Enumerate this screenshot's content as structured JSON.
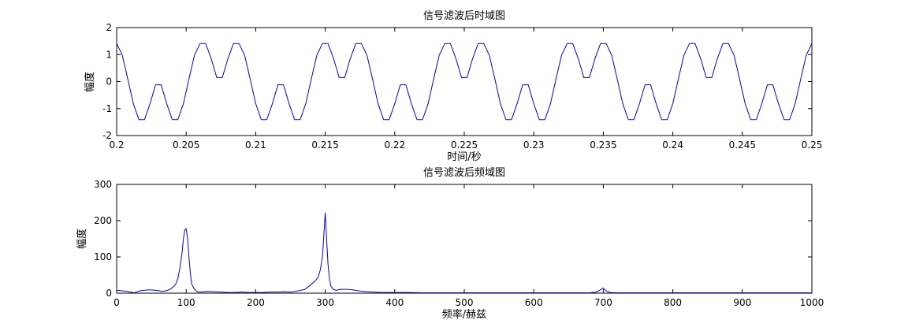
{
  "colors": {
    "axes": "#000000",
    "line": "#0000cc",
    "background": "#ffffff"
  },
  "chart_data": [
    {
      "type": "line",
      "title": "信号滤波后时域图",
      "xlabel": "时间/秒",
      "ylabel": "幅度",
      "xlim": [
        0.2,
        0.25
      ],
      "ylim": [
        -2,
        2
      ],
      "xticks": [
        0.2,
        0.205,
        0.21,
        0.215,
        0.22,
        0.225,
        0.23,
        0.235,
        0.24,
        0.245,
        0.25
      ],
      "xtick_labels": [
        "0.2",
        "0.205",
        "0.21",
        "0.215",
        "0.22",
        "0.225",
        "0.23",
        "0.235",
        "0.24",
        "0.245",
        "0.25"
      ],
      "yticks": [
        -2,
        -1,
        0,
        1,
        2
      ],
      "ytick_labels": [
        "-2",
        "-1",
        "0",
        "1",
        "2"
      ],
      "grid": false,
      "series": [
        {
          "x": [
            0.2,
            0.2004,
            0.2008,
            0.2012,
            0.2016,
            0.202,
            0.2024,
            0.2028,
            0.2032,
            0.2036,
            0.204,
            0.2044,
            0.2048,
            0.2052,
            0.2056,
            0.206,
            0.2064,
            0.2068,
            0.2072,
            0.2076,
            0.208,
            0.2084,
            0.2088,
            0.2092,
            0.2096,
            0.21,
            0.2104,
            0.2108,
            0.2112,
            0.2116,
            0.212,
            0.2124,
            0.2128,
            0.2132,
            0.2136,
            0.214,
            0.2144,
            0.2148,
            0.2152,
            0.2156,
            0.216,
            0.2164,
            0.2168,
            0.2172,
            0.2176,
            0.218,
            0.2184,
            0.2188,
            0.2192,
            0.2196,
            0.22,
            0.2204,
            0.2208,
            0.2212,
            0.2216,
            0.222,
            0.2224,
            0.2228,
            0.2232,
            0.2236,
            0.224,
            0.2244,
            0.2248,
            0.2252,
            0.2256,
            0.226,
            0.2264,
            0.2268,
            0.2272,
            0.2276,
            0.228,
            0.2284,
            0.2288,
            0.2292,
            0.2296,
            0.23,
            0.2304,
            0.2308,
            0.2312,
            0.2316,
            0.232,
            0.2324,
            0.2328,
            0.2332,
            0.2336,
            0.234,
            0.2344,
            0.2348,
            0.2352,
            0.2356,
            0.236,
            0.2364,
            0.2368,
            0.2372,
            0.2376,
            0.238,
            0.2384,
            0.2388,
            0.2392,
            0.2396,
            0.24,
            0.2404,
            0.2408,
            0.2412,
            0.2416,
            0.242,
            0.2424,
            0.2428,
            0.2432,
            0.2436,
            0.244,
            0.2444,
            0.2448,
            0.2452,
            0.2456,
            0.246,
            0.2464,
            0.2468,
            0.2472,
            0.2476,
            0.248,
            0.2484,
            0.2488,
            0.2492,
            0.2496,
            0.25
          ],
          "y": [
            1.41,
            0.98,
            0.1,
            -0.82,
            -1.41,
            -1.41,
            -0.82,
            -0.12,
            -0.12,
            -0.82,
            -1.41,
            -1.41,
            -0.82,
            0.1,
            0.98,
            1.41,
            1.41,
            0.85,
            0.15,
            0.15,
            0.85,
            1.41,
            1.41,
            0.98,
            0.1,
            -0.82,
            -1.41,
            -1.41,
            -0.82,
            -0.12,
            -0.12,
            -0.82,
            -1.41,
            -1.41,
            -0.82,
            0.1,
            0.98,
            1.41,
            1.41,
            0.85,
            0.15,
            0.15,
            0.85,
            1.41,
            1.41,
            0.98,
            0.1,
            -0.82,
            -1.41,
            -1.41,
            -0.82,
            -0.12,
            -0.12,
            -0.82,
            -1.41,
            -1.41,
            -0.82,
            0.1,
            0.98,
            1.41,
            1.41,
            0.85,
            0.15,
            0.15,
            0.85,
            1.41,
            1.41,
            0.98,
            0.1,
            -0.82,
            -1.41,
            -1.41,
            -0.82,
            -0.12,
            -0.12,
            -0.82,
            -1.41,
            -1.41,
            -0.82,
            0.1,
            0.98,
            1.41,
            1.41,
            0.85,
            0.15,
            0.15,
            0.85,
            1.41,
            1.41,
            0.98,
            0.1,
            -0.82,
            -1.41,
            -1.41,
            -0.82,
            -0.12,
            -0.12,
            -0.82,
            -1.41,
            -1.41,
            -0.82,
            0.1,
            0.98,
            1.41,
            1.41,
            0.85,
            0.15,
            0.15,
            0.85,
            1.41,
            1.41,
            0.98,
            0.1,
            -0.82,
            -1.41,
            -1.41,
            -0.82,
            -0.12,
            -0.12,
            -0.82,
            -1.41,
            -1.41,
            -0.82,
            0.1,
            0.98,
            1.41
          ]
        }
      ]
    },
    {
      "type": "line",
      "title": "信号滤波后频域图",
      "xlabel": "频率/赫兹",
      "ylabel": "幅度",
      "xlim": [
        0,
        1000
      ],
      "ylim": [
        0,
        300
      ],
      "xticks": [
        0,
        100,
        200,
        300,
        400,
        500,
        600,
        700,
        800,
        900,
        1000
      ],
      "xtick_labels": [
        "0",
        "100",
        "200",
        "300",
        "400",
        "500",
        "600",
        "700",
        "800",
        "900",
        "1000"
      ],
      "yticks": [
        0,
        100,
        200,
        300
      ],
      "ytick_labels": [
        "0",
        "100",
        "200",
        "300"
      ],
      "grid": false,
      "series": [
        {
          "x": [
            0,
            5,
            10,
            15,
            20,
            25,
            30,
            35,
            40,
            45,
            50,
            55,
            60,
            65,
            70,
            75,
            80,
            85,
            88,
            91,
            94,
            96,
            98,
            100,
            102,
            104,
            106,
            108,
            112,
            116,
            120,
            125,
            130,
            140,
            150,
            160,
            170,
            180,
            190,
            200,
            210,
            220,
            230,
            240,
            250,
            260,
            270,
            276,
            282,
            286,
            290,
            293,
            296,
            298,
            300,
            302,
            304,
            306,
            308,
            312,
            316,
            320,
            330,
            340,
            350,
            360,
            370,
            380,
            390,
            400,
            420,
            440,
            460,
            480,
            500,
            520,
            540,
            560,
            580,
            600,
            620,
            640,
            660,
            680,
            690,
            695,
            698,
            700,
            702,
            705,
            710,
            720,
            740,
            760,
            780,
            800,
            820,
            840,
            860,
            880,
            900,
            920,
            940,
            960,
            980,
            1000
          ],
          "y": [
            8,
            7,
            6,
            5,
            3,
            1,
            4,
            7,
            8,
            9,
            9,
            8,
            7,
            5,
            6,
            9,
            15,
            25,
            40,
            70,
            110,
            150,
            175,
            178,
            150,
            100,
            55,
            25,
            10,
            4,
            3,
            4,
            5,
            4,
            3,
            2,
            2,
            3,
            2,
            2,
            2,
            3,
            3,
            4,
            3,
            6,
            10,
            18,
            28,
            35,
            45,
            65,
            100,
            160,
            222,
            150,
            80,
            40,
            20,
            10,
            8,
            10,
            11,
            9,
            6,
            4,
            3,
            2,
            2,
            2,
            2,
            1,
            1,
            1,
            1,
            1,
            1,
            1,
            1,
            1,
            1,
            1,
            1,
            1,
            3,
            8,
            12,
            14,
            10,
            5,
            2,
            1,
            1,
            1,
            1,
            1,
            1,
            1,
            1,
            1,
            1,
            1,
            1,
            1,
            1,
            1
          ]
        }
      ]
    }
  ]
}
